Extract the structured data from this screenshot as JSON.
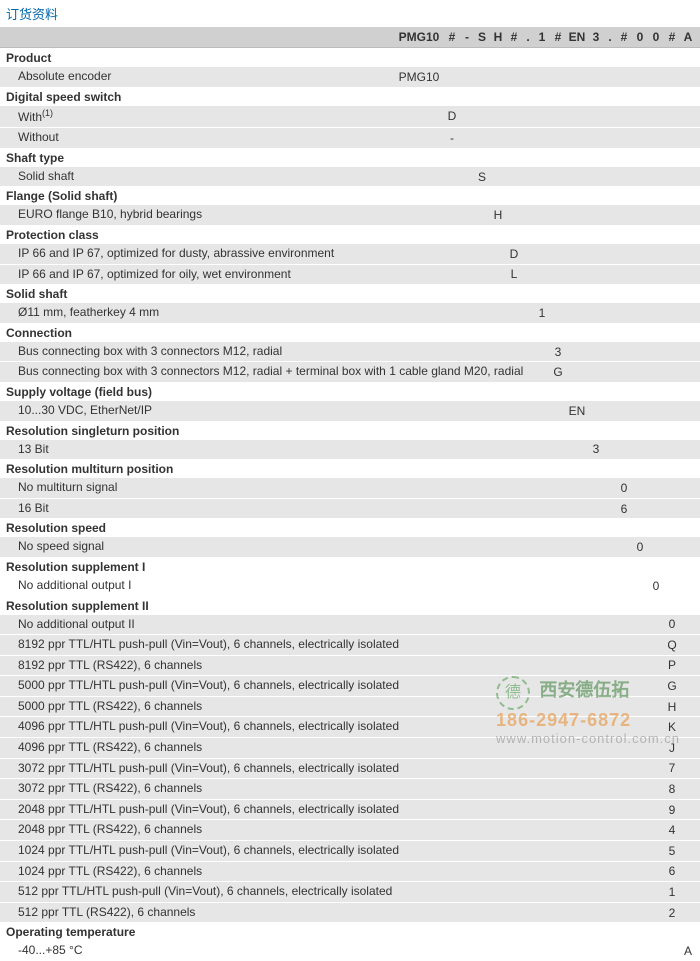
{
  "title": "订货资料",
  "colors": {
    "title": "#0066aa",
    "header_bg": "#d0d0d0",
    "row_bg": "#e6e6e6",
    "text": "#333333"
  },
  "columns": [
    {
      "key": "c0",
      "label": "PMG10",
      "w": 50
    },
    {
      "key": "c1",
      "label": "#",
      "w": 16
    },
    {
      "key": "c2",
      "label": "-",
      "w": 14
    },
    {
      "key": "c3",
      "label": "S",
      "w": 16
    },
    {
      "key": "c4",
      "label": "H",
      "w": 16
    },
    {
      "key": "c5",
      "label": "#",
      "w": 16
    },
    {
      "key": "c6",
      "label": ".",
      "w": 12
    },
    {
      "key": "c7",
      "label": "1",
      "w": 16
    },
    {
      "key": "c8",
      "label": "#",
      "w": 16
    },
    {
      "key": "c9",
      "label": "EN",
      "w": 22
    },
    {
      "key": "c10",
      "label": "3",
      "w": 16
    },
    {
      "key": "c11",
      "label": ".",
      "w": 12
    },
    {
      "key": "c12",
      "label": "#",
      "w": 16
    },
    {
      "key": "c13",
      "label": "0",
      "w": 16
    },
    {
      "key": "c14",
      "label": "0",
      "w": 16
    },
    {
      "key": "c15",
      "label": "#",
      "w": 16
    },
    {
      "key": "c16",
      "label": "A",
      "w": 16
    }
  ],
  "sections": [
    {
      "head": "Product",
      "rows": [
        {
          "label": "Absolute encoder",
          "codes": {
            "c0": "PMG10"
          }
        }
      ]
    },
    {
      "head": "Digital speed switch",
      "rows": [
        {
          "label": "With<sup>(1)</sup>",
          "codes": {
            "c1": "D"
          }
        },
        {
          "label": "Without",
          "codes": {
            "c1": "-"
          }
        }
      ]
    },
    {
      "head": "Shaft type",
      "rows": [
        {
          "label": "Solid shaft",
          "codes": {
            "c3": "S"
          }
        }
      ]
    },
    {
      "head": "Flange (Solid shaft)",
      "rows": [
        {
          "label": "EURO flange B10, hybrid bearings",
          "codes": {
            "c4": "H"
          }
        }
      ]
    },
    {
      "head": "Protection class",
      "rows": [
        {
          "label": "IP 66 and IP 67, optimized for dusty, abrassive environment",
          "codes": {
            "c5": "D"
          }
        },
        {
          "label": "IP 66 and IP 67, optimized for oily, wet environment",
          "codes": {
            "c5": "L"
          }
        }
      ]
    },
    {
      "head": "Solid shaft",
      "rows": [
        {
          "label": "Ø11 mm, featherkey 4 mm",
          "codes": {
            "c7": "1"
          }
        }
      ]
    },
    {
      "head": "Connection",
      "rows": [
        {
          "label": "Bus connecting box with 3 connectors M12, radial",
          "codes": {
            "c8": "3"
          }
        },
        {
          "label": "Bus connecting box with 3 connectors M12, radial + terminal box with 1 cable gland M20, radial",
          "codes": {
            "c8": "G"
          }
        }
      ]
    },
    {
      "head": "Supply voltage (field bus)",
      "rows": [
        {
          "label": "10...30 VDC, EtherNet/IP",
          "codes": {
            "c9": "EN"
          }
        }
      ]
    },
    {
      "head": "Resolution singleturn position",
      "rows": [
        {
          "label": "13 Bit",
          "codes": {
            "c10": "3"
          }
        }
      ]
    },
    {
      "head": "Resolution multiturn position",
      "rows": [
        {
          "label": "No multiturn signal",
          "codes": {
            "c12": "0"
          }
        },
        {
          "label": "16 Bit",
          "codes": {
            "c12": "6"
          }
        }
      ]
    },
    {
      "head": "Resolution speed",
      "rows": [
        {
          "label": "No speed signal",
          "codes": {
            "c13": "0"
          }
        }
      ]
    },
    {
      "head": "Resolution supplement I",
      "rows": [
        {
          "label": "No additional output I",
          "bg": "white",
          "codes": {
            "c14": "0"
          }
        }
      ]
    },
    {
      "head": "Resolution supplement II",
      "rows": [
        {
          "label": "No additional output II",
          "codes": {
            "c15": "0"
          }
        },
        {
          "label": "8192 ppr TTL/HTL push-pull (Vin=Vout), 6 channels, electrically isolated",
          "codes": {
            "c15": "Q"
          }
        },
        {
          "label": "8192 ppr TTL (RS422), 6 channels",
          "codes": {
            "c15": "P"
          }
        },
        {
          "label": "5000 ppr TTL/HTL push-pull (Vin=Vout), 6 channels, electrically isolated",
          "codes": {
            "c15": "G"
          }
        },
        {
          "label": "5000 ppr TTL (RS422), 6 channels",
          "codes": {
            "c15": "H"
          }
        },
        {
          "label": "4096 ppr TTL/HTL push-pull (Vin=Vout), 6 channels, electrically isolated",
          "codes": {
            "c15": "K"
          }
        },
        {
          "label": "4096 ppr TTL (RS422), 6 channels",
          "codes": {
            "c15": "J"
          }
        },
        {
          "label": "3072 ppr TTL/HTL push-pull (Vin=Vout), 6 channels, electrically isolated",
          "codes": {
            "c15": "7"
          }
        },
        {
          "label": "3072 ppr TTL (RS422), 6 channels",
          "codes": {
            "c15": "8"
          }
        },
        {
          "label": "2048 ppr TTL/HTL push-pull (Vin=Vout), 6 channels, electrically isolated",
          "codes": {
            "c15": "9"
          }
        },
        {
          "label": "2048 ppr TTL (RS422), 6 channels",
          "codes": {
            "c15": "4"
          }
        },
        {
          "label": "1024 ppr TTL/HTL push-pull (Vin=Vout), 6 channels, electrically isolated",
          "codes": {
            "c15": "5"
          }
        },
        {
          "label": "1024 ppr TTL (RS422), 6 channels",
          "codes": {
            "c15": "6"
          }
        },
        {
          "label": "512 ppr TTL/HTL push-pull (Vin=Vout), 6 channels, electrically isolated",
          "codes": {
            "c15": "1"
          }
        },
        {
          "label": "512 ppr TTL (RS422), 6 channels",
          "codes": {
            "c15": "2"
          }
        }
      ]
    },
    {
      "head": "Operating temperature",
      "rows": [
        {
          "label": "-40...+85 °C",
          "bg": "white",
          "codes": {
            "c16": "A"
          }
        }
      ]
    }
  ],
  "watermark": {
    "brand": "西安德伍拓",
    "phone": "186-2947-6872",
    "url": "www.motion-control.com.cn",
    "icon_text": "德"
  }
}
